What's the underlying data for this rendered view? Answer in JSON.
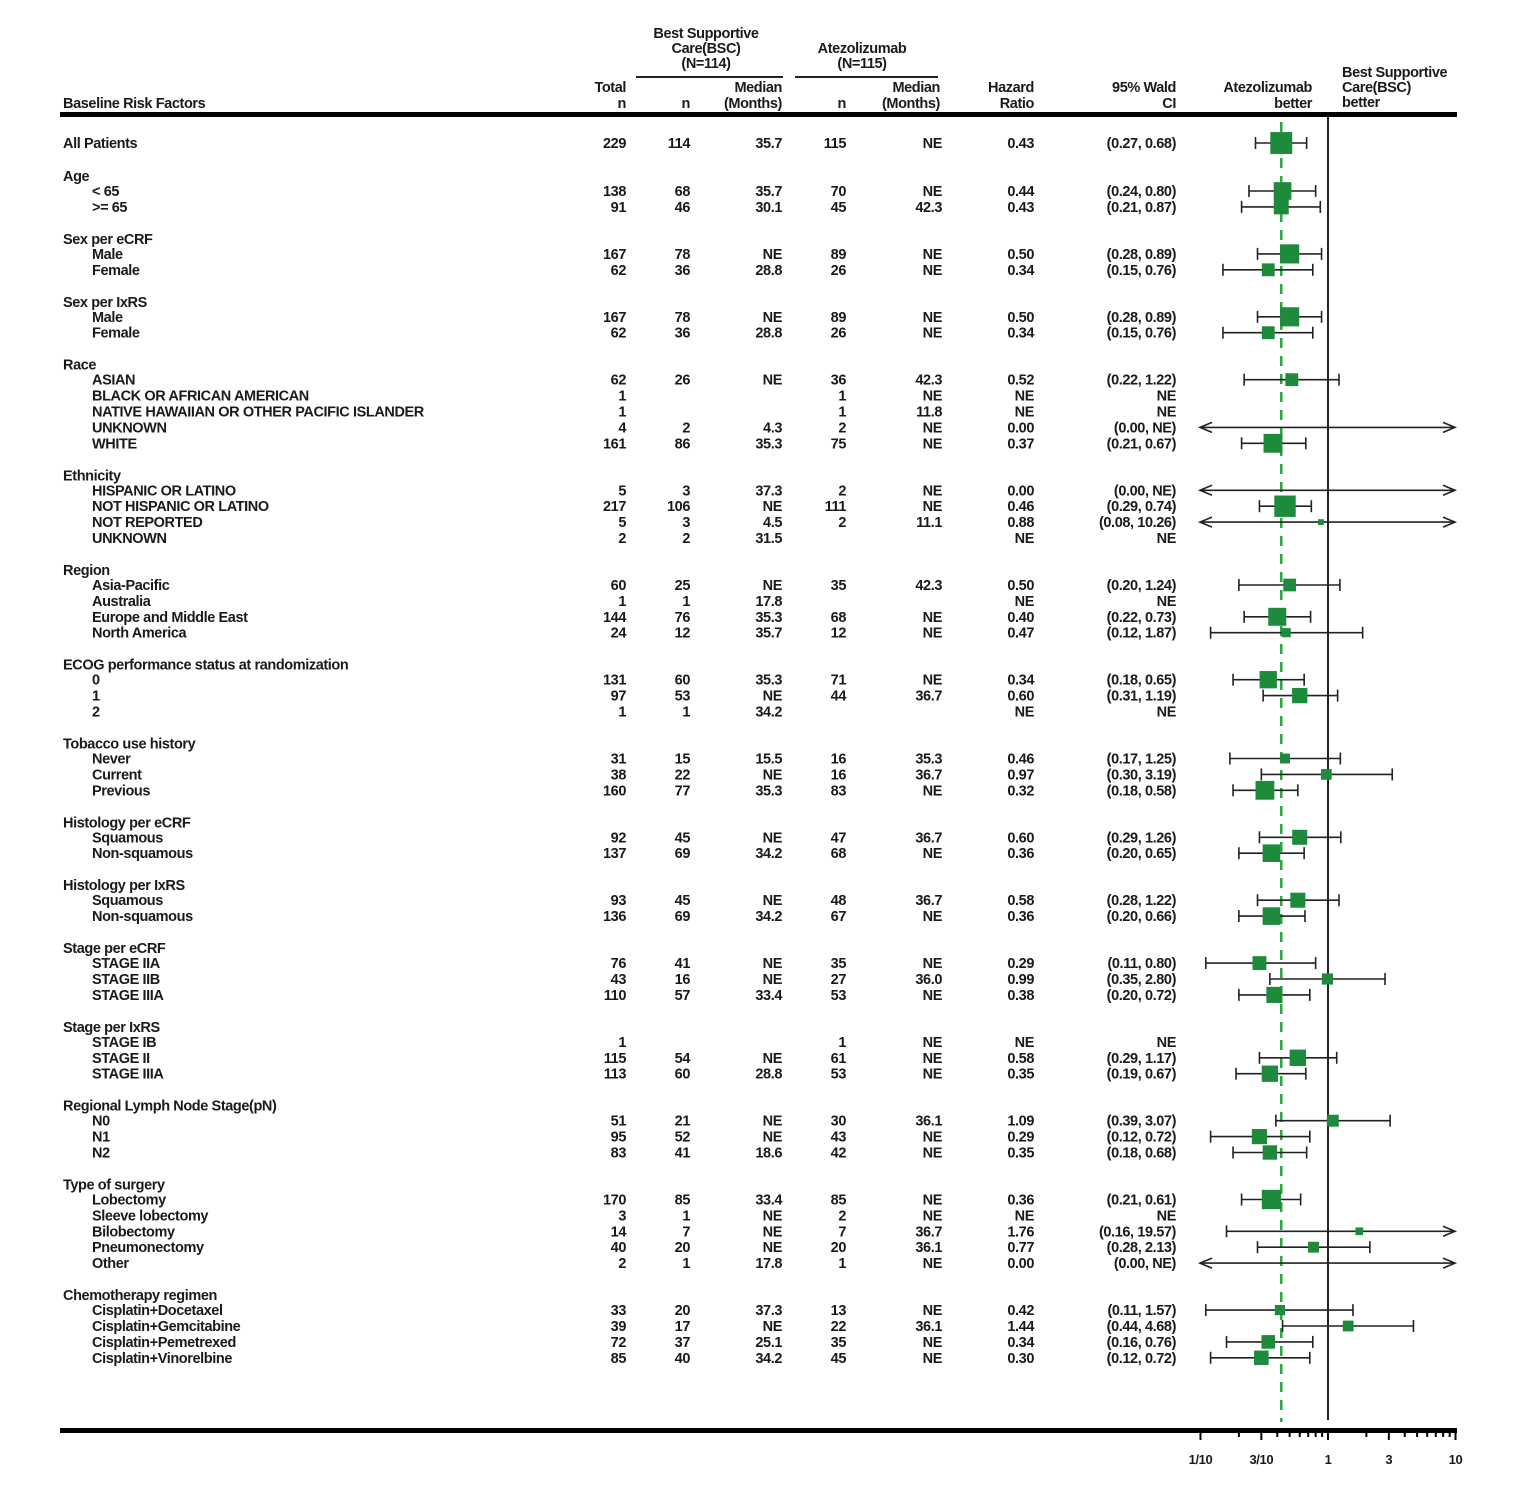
{
  "chart_data": {
    "type": "forest",
    "title": "",
    "headers": {
      "risk_factors": "Baseline Risk Factors",
      "total": [
        "Total",
        "n"
      ],
      "bsc_group": [
        "Best Supportive",
        "Care(BSC)",
        "(N=114)"
      ],
      "atz_group": [
        "Atezolizumab",
        "(N=115)"
      ],
      "n": "n",
      "median": [
        "Median",
        "(Months)"
      ],
      "hr": [
        "Hazard",
        "Ratio"
      ],
      "ci": [
        "95% Wald",
        "CI"
      ],
      "left_better": [
        "Atezolizumab",
        "better"
      ],
      "right_better": [
        "Best Supportive",
        "Care(BSC)",
        "better"
      ]
    },
    "fields": [
      "label",
      "total_n",
      "bsc_n",
      "bsc_median",
      "atz_n",
      "atz_median",
      "hazard_ratio",
      "ci_95"
    ],
    "all_patients": [
      "All Patients",
      "229",
      "114",
      "35.7",
      "115",
      "NE",
      "0.43",
      "(0.27, 0.68)"
    ],
    "groups": [
      {
        "name": "Age",
        "rows": [
          [
            "< 65",
            "138",
            "68",
            "35.7",
            "70",
            "NE",
            "0.44",
            "(0.24, 0.80)"
          ],
          [
            ">= 65",
            "91",
            "46",
            "30.1",
            "45",
            "42.3",
            "0.43",
            "(0.21, 0.87)"
          ]
        ]
      },
      {
        "name": "Sex per eCRF",
        "rows": [
          [
            "Male",
            "167",
            "78",
            "NE",
            "89",
            "NE",
            "0.50",
            "(0.28, 0.89)"
          ],
          [
            "Female",
            "62",
            "36",
            "28.8",
            "26",
            "NE",
            "0.34",
            "(0.15, 0.76)"
          ]
        ]
      },
      {
        "name": "Sex per IxRS",
        "rows": [
          [
            "Male",
            "167",
            "78",
            "NE",
            "89",
            "NE",
            "0.50",
            "(0.28, 0.89)"
          ],
          [
            "Female",
            "62",
            "36",
            "28.8",
            "26",
            "NE",
            "0.34",
            "(0.15, 0.76)"
          ]
        ]
      },
      {
        "name": "Race",
        "rows": [
          [
            "ASIAN",
            "62",
            "26",
            "NE",
            "36",
            "42.3",
            "0.52",
            "(0.22, 1.22)"
          ],
          [
            "BLACK OR AFRICAN AMERICAN",
            "1",
            "",
            "",
            "1",
            "NE",
            "NE",
            "NE"
          ],
          [
            "NATIVE HAWAIIAN OR OTHER PACIFIC ISLANDER",
            "1",
            "",
            "",
            "1",
            "11.8",
            "NE",
            "NE"
          ],
          [
            "UNKNOWN",
            "4",
            "2",
            "4.3",
            "2",
            "NE",
            "0.00",
            "(0.00, NE)"
          ],
          [
            "WHITE",
            "161",
            "86",
            "35.3",
            "75",
            "NE",
            "0.37",
            "(0.21, 0.67)"
          ]
        ]
      },
      {
        "name": "Ethnicity",
        "rows": [
          [
            "HISPANIC OR LATINO",
            "5",
            "3",
            "37.3",
            "2",
            "NE",
            "0.00",
            "(0.00, NE)"
          ],
          [
            "NOT HISPANIC OR LATINO",
            "217",
            "106",
            "NE",
            "111",
            "NE",
            "0.46",
            "(0.29, 0.74)"
          ],
          [
            "NOT REPORTED",
            "5",
            "3",
            "4.5",
            "2",
            "11.1",
            "0.88",
            "(0.08, 10.26)"
          ],
          [
            "UNKNOWN",
            "2",
            "2",
            "31.5",
            "",
            "",
            "NE",
            "NE"
          ]
        ]
      },
      {
        "name": "Region",
        "rows": [
          [
            "Asia-Pacific",
            "60",
            "25",
            "NE",
            "35",
            "42.3",
            "0.50",
            "(0.20, 1.24)"
          ],
          [
            "Australia",
            "1",
            "1",
            "17.8",
            "",
            "",
            "NE",
            "NE"
          ],
          [
            "Europe and Middle East",
            "144",
            "76",
            "35.3",
            "68",
            "NE",
            "0.40",
            "(0.22, 0.73)"
          ],
          [
            "North America",
            "24",
            "12",
            "35.7",
            "12",
            "NE",
            "0.47",
            "(0.12, 1.87)"
          ]
        ]
      },
      {
        "name": "ECOG performance status at randomization",
        "rows": [
          [
            "0",
            "131",
            "60",
            "35.3",
            "71",
            "NE",
            "0.34",
            "(0.18, 0.65)"
          ],
          [
            "1",
            "97",
            "53",
            "NE",
            "44",
            "36.7",
            "0.60",
            "(0.31, 1.19)"
          ],
          [
            "2",
            "1",
            "1",
            "34.2",
            "",
            "",
            "NE",
            "NE"
          ]
        ]
      },
      {
        "name": "Tobacco use history",
        "rows": [
          [
            "Never",
            "31",
            "15",
            "15.5",
            "16",
            "35.3",
            "0.46",
            "(0.17, 1.25)"
          ],
          [
            "Current",
            "38",
            "22",
            "NE",
            "16",
            "36.7",
            "0.97",
            "(0.30, 3.19)"
          ],
          [
            "Previous",
            "160",
            "77",
            "35.3",
            "83",
            "NE",
            "0.32",
            "(0.18, 0.58)"
          ]
        ]
      },
      {
        "name": "Histology per eCRF",
        "rows": [
          [
            "Squamous",
            "92",
            "45",
            "NE",
            "47",
            "36.7",
            "0.60",
            "(0.29, 1.26)"
          ],
          [
            "Non-squamous",
            "137",
            "69",
            "34.2",
            "68",
            "NE",
            "0.36",
            "(0.20, 0.65)"
          ]
        ]
      },
      {
        "name": "Histology per IxRS",
        "rows": [
          [
            "Squamous",
            "93",
            "45",
            "NE",
            "48",
            "36.7",
            "0.58",
            "(0.28, 1.22)"
          ],
          [
            "Non-squamous",
            "136",
            "69",
            "34.2",
            "67",
            "NE",
            "0.36",
            "(0.20, 0.66)"
          ]
        ]
      },
      {
        "name": "Stage per eCRF",
        "rows": [
          [
            "STAGE IIA",
            "76",
            "41",
            "NE",
            "35",
            "NE",
            "0.29",
            "(0.11, 0.80)"
          ],
          [
            "STAGE IIB",
            "43",
            "16",
            "NE",
            "27",
            "36.0",
            "0.99",
            "(0.35, 2.80)"
          ],
          [
            "STAGE IIIA",
            "110",
            "57",
            "33.4",
            "53",
            "NE",
            "0.38",
            "(0.20, 0.72)"
          ]
        ]
      },
      {
        "name": "Stage per IxRS",
        "rows": [
          [
            "STAGE IB",
            "1",
            "",
            "",
            "1",
            "NE",
            "NE",
            "NE"
          ],
          [
            "STAGE II",
            "115",
            "54",
            "NE",
            "61",
            "NE",
            "0.58",
            "(0.29, 1.17)"
          ],
          [
            "STAGE IIIA",
            "113",
            "60",
            "28.8",
            "53",
            "NE",
            "0.35",
            "(0.19, 0.67)"
          ]
        ]
      },
      {
        "name": "Regional Lymph Node Stage(pN)",
        "rows": [
          [
            "N0",
            "51",
            "21",
            "NE",
            "30",
            "36.1",
            "1.09",
            "(0.39, 3.07)"
          ],
          [
            "N1",
            "95",
            "52",
            "NE",
            "43",
            "NE",
            "0.29",
            "(0.12, 0.72)"
          ],
          [
            "N2",
            "83",
            "41",
            "18.6",
            "42",
            "NE",
            "0.35",
            "(0.18, 0.68)"
          ]
        ]
      },
      {
        "name": "Type of surgery",
        "rows": [
          [
            "Lobectomy",
            "170",
            "85",
            "33.4",
            "85",
            "NE",
            "0.36",
            "(0.21, 0.61)"
          ],
          [
            "Sleeve lobectomy",
            "3",
            "1",
            "NE",
            "2",
            "NE",
            "NE",
            "NE"
          ],
          [
            "Bilobectomy",
            "14",
            "7",
            "NE",
            "7",
            "36.7",
            "1.76",
            "(0.16, 19.57)"
          ],
          [
            "Pneumonectomy",
            "40",
            "20",
            "NE",
            "20",
            "36.1",
            "0.77",
            "(0.28, 2.13)"
          ],
          [
            "Other",
            "2",
            "1",
            "17.8",
            "1",
            "NE",
            "0.00",
            "(0.00, NE)"
          ]
        ]
      },
      {
        "name": "Chemotherapy regimen",
        "rows": [
          [
            "Cisplatin+Docetaxel",
            "33",
            "20",
            "37.3",
            "13",
            "NE",
            "0.42",
            "(0.11, 1.57)"
          ],
          [
            "Cisplatin+Gemcitabine",
            "39",
            "17",
            "NE",
            "22",
            "36.1",
            "1.44",
            "(0.44, 4.68)"
          ],
          [
            "Cisplatin+Pemetrexed",
            "72",
            "37",
            "25.1",
            "35",
            "NE",
            "0.34",
            "(0.16, 0.76)"
          ],
          [
            "Cisplatin+Vinorelbine",
            "85",
            "40",
            "34.2",
            "45",
            "NE",
            "0.30",
            "(0.12, 0.72)"
          ]
        ]
      }
    ],
    "x_axis": {
      "scale": "log",
      "xlim": [
        0.1,
        10
      ],
      "ticks": [
        {
          "value": 0.1,
          "label": "1/10"
        },
        {
          "value": 0.3,
          "label": "3/10"
        },
        {
          "value": 1,
          "label": "1"
        },
        {
          "value": 3,
          "label": "3"
        },
        {
          "value": 10,
          "label": "10"
        }
      ]
    },
    "reference_line": 1,
    "overall_hr_line": 0.43,
    "colors": {
      "marker": "#1e8a3c",
      "overall_line": "#2aa63f",
      "text": "#1a1a1a",
      "axis": "#000000"
    }
  }
}
